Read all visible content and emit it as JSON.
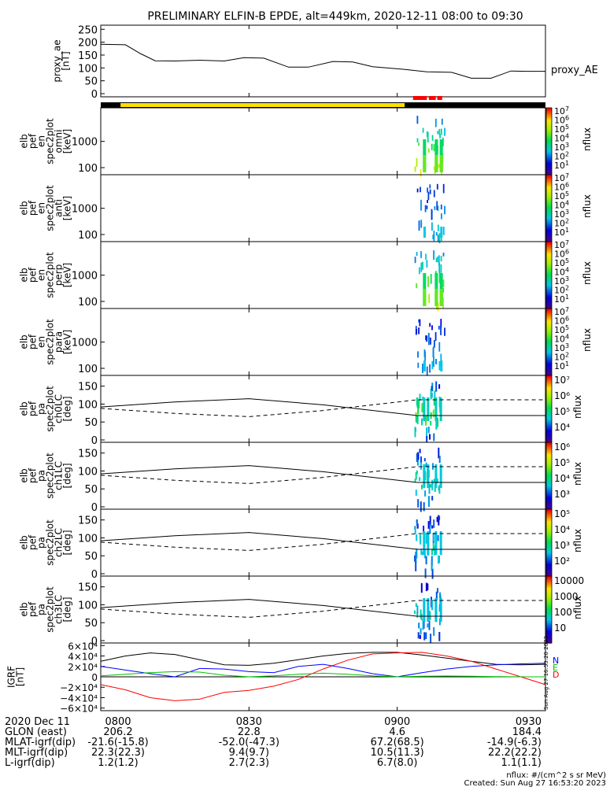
{
  "title": "PRELIMINARY ELFIN-B EPDE, alt=449km, 2020-12-11 08:00 to 09:30",
  "time_axis": {
    "ticks": [
      "0800",
      "0830",
      "0900",
      "0930"
    ],
    "minutes": [
      0,
      30,
      60,
      90
    ],
    "range_minutes": [
      0,
      90
    ]
  },
  "status_bar": {
    "colors": {
      "off": "#000000",
      "yellow": "#ffe000",
      "red": "#ff0000"
    },
    "yellow_minutes": [
      4,
      61.5
    ],
    "red_marks": [
      [
        63.2,
        66.0
      ],
      [
        66.4,
        67.8
      ],
      [
        68.1,
        69.1
      ]
    ]
  },
  "ae_panel": {
    "ylabel_lines": [
      "proxy_ae",
      "[nT]"
    ],
    "yticks": [
      "250",
      "200",
      "150",
      "100",
      "50",
      "0"
    ],
    "ytick_values": [
      250,
      200,
      150,
      100,
      50,
      0
    ],
    "ylim": [
      0,
      260
    ],
    "legend": "proxy_AE",
    "x": [
      0,
      5,
      8,
      11,
      15,
      20,
      25,
      29,
      33,
      38,
      42,
      47,
      51,
      55,
      61,
      66,
      71,
      75,
      79,
      83,
      86,
      90
    ],
    "y": [
      192,
      190,
      156,
      128,
      127,
      130,
      127,
      140,
      138,
      103,
      103,
      125,
      123,
      105,
      95,
      85,
      83,
      60,
      60,
      88,
      87,
      87
    ]
  },
  "energy_panels": [
    {
      "ylabel_lines": [
        "elb",
        "pef",
        "en",
        "spec2plot",
        "omni",
        "[keV]"
      ],
      "cbar_exp": [
        "7",
        "6",
        "5",
        "4",
        "3",
        "2",
        "1"
      ],
      "cbar_label": "nflux",
      "intensity": 1.0
    },
    {
      "ylabel_lines": [
        "elb",
        "pef",
        "en",
        "spec2plot",
        "anti",
        "[keV]"
      ],
      "cbar_exp": [
        "7",
        "6",
        "5",
        "4",
        "3",
        "2",
        "1"
      ],
      "cbar_label": "nflux",
      "intensity": 0.45
    },
    {
      "ylabel_lines": [
        "elb",
        "pef",
        "en",
        "spec2plot",
        "perp",
        "[keV]"
      ],
      "cbar_exp": [
        "7",
        "6",
        "5",
        "4",
        "3",
        "2",
        "1"
      ],
      "cbar_label": "nflux",
      "intensity": 1.0
    },
    {
      "ylabel_lines": [
        "elb",
        "pef",
        "en",
        "spec2plot",
        "para",
        "[keV]"
      ],
      "cbar_exp": [
        "7",
        "6",
        "5",
        "4",
        "3",
        "2",
        "1"
      ],
      "cbar_label": "nflux",
      "intensity": 0.4
    }
  ],
  "energy_yticks": [
    "1000",
    "100"
  ],
  "energy_ytick_values": [
    1000,
    100
  ],
  "pa_panels": [
    {
      "ylabel_lines": [
        "elb",
        "pef",
        "pa",
        "spec2plot",
        "ch0LC",
        "[deg]"
      ],
      "cbar_labels": [
        "10⁷",
        "10⁶",
        "10⁵",
        "10⁴"
      ],
      "cbar_label": "nflux",
      "intensity": 1.0
    },
    {
      "ylabel_lines": [
        "elb",
        "pef",
        "pa",
        "spec2plot",
        "ch1LC",
        "[deg]"
      ],
      "cbar_labels": [
        "10⁶",
        "10⁵",
        "10⁴",
        "10³"
      ],
      "cbar_label": "nflux",
      "intensity": 0.7
    },
    {
      "ylabel_lines": [
        "elb",
        "pef",
        "pa",
        "spec2plot",
        "ch2LC",
        "[deg]"
      ],
      "cbar_labels": [
        "10⁵",
        "10⁴",
        "10³",
        "10²"
      ],
      "cbar_label": "nflux",
      "intensity": 0.6
    },
    {
      "ylabel_lines": [
        "elb",
        "pef",
        "pa",
        "spec2plot",
        "ch3LC",
        "[deg]"
      ],
      "cbar_labels": [
        "10000",
        "1000",
        "100",
        "10"
      ],
      "cbar_label": "nflux",
      "intensity": 0.55
    }
  ],
  "pa_yticks": [
    "150",
    "100",
    "50",
    "0"
  ],
  "pa_ytick_values": [
    150,
    100,
    50,
    0
  ],
  "pa_ylim": [
    0,
    180
  ],
  "loss_cone": {
    "solid_x": [
      0,
      15,
      30,
      45,
      64
    ],
    "solid_y": [
      92,
      106,
      115,
      98,
      68
    ],
    "dashed_x": [
      0,
      15,
      30,
      45,
      64,
      90
    ],
    "dashed_y": [
      88,
      74,
      65,
      82,
      112,
      112
    ],
    "solid_right_y": 68
  },
  "igrf_panel": {
    "ylabel_lines": [
      "IGRF",
      "[nT]"
    ],
    "yticks": [
      "6×10⁴",
      "4×10⁴",
      "2×10⁴",
      "0",
      "−2×10⁴",
      "−4×10⁴",
      "−6×10⁴"
    ],
    "ytick_values": [
      60000,
      40000,
      20000,
      0,
      -20000,
      -40000,
      -60000
    ],
    "ylim": [
      -65000,
      65000
    ],
    "legend": [
      {
        "label": "N",
        "color": "#0000ff"
      },
      {
        "label": "E",
        "color": "#00c000"
      },
      {
        "label": "D",
        "color": "#ff0000"
      }
    ],
    "x": [
      0,
      5,
      10,
      15,
      20,
      25,
      30,
      35,
      40,
      45,
      50,
      55,
      60,
      65,
      70,
      75,
      80,
      85,
      90
    ],
    "black": [
      30000,
      40000,
      46000,
      43000,
      33000,
      23000,
      22000,
      26000,
      33000,
      40000,
      45000,
      47000,
      47000,
      42000,
      36000,
      30000,
      24000,
      23000,
      24000
    ],
    "red": [
      -15000,
      -25000,
      -40000,
      -46000,
      -43000,
      -30000,
      -26000,
      -18000,
      -5000,
      15000,
      32000,
      44000,
      46000,
      47000,
      40000,
      30000,
      15000,
      0,
      -15000
    ],
    "blue": [
      20000,
      13000,
      6000,
      0,
      16000,
      15000,
      10000,
      8000,
      20000,
      24000,
      16000,
      6000,
      0,
      8000,
      15000,
      20000,
      23000,
      25000,
      26000
    ],
    "green": [
      2000,
      5000,
      8000,
      10000,
      9000,
      3000,
      0,
      2000,
      5000,
      7000,
      5000,
      2000,
      0,
      1000,
      1500,
      1000,
      500,
      0,
      0
    ],
    "side_stamp": "Sun Aug 27 16:53:20 2023"
  },
  "footer": {
    "rows": [
      {
        "label": "2020 Dec 11",
        "values": [
          "0800",
          "0830",
          "0900",
          "0930"
        ]
      },
      {
        "label": "GLON (east)",
        "values": [
          "206.2",
          "22.8",
          "4.6",
          "184.4"
        ]
      },
      {
        "label": "MLAT-igrf(dip)",
        "values": [
          "-21.6(-15.8)",
          "-52.0(-47.3)",
          "67.2(68.5)",
          "-14.9(-6.3)"
        ]
      },
      {
        "label": "MLT-igrf(dip)",
        "values": [
          "22.3(22.3)",
          "9.4(9.7)",
          "10.5(11.3)",
          "22.2(22.2)"
        ]
      },
      {
        "label": "L-igrf(dip)",
        "values": [
          "1.2(1.2)",
          "2.7(2.3)",
          "6.7(8.0)",
          "1.1(1.1)"
        ]
      }
    ],
    "units_note": "nflux: #/(cm^2 s sr MeV)",
    "created": "Created: Sun Aug 27 16:53:20 2023"
  }
}
